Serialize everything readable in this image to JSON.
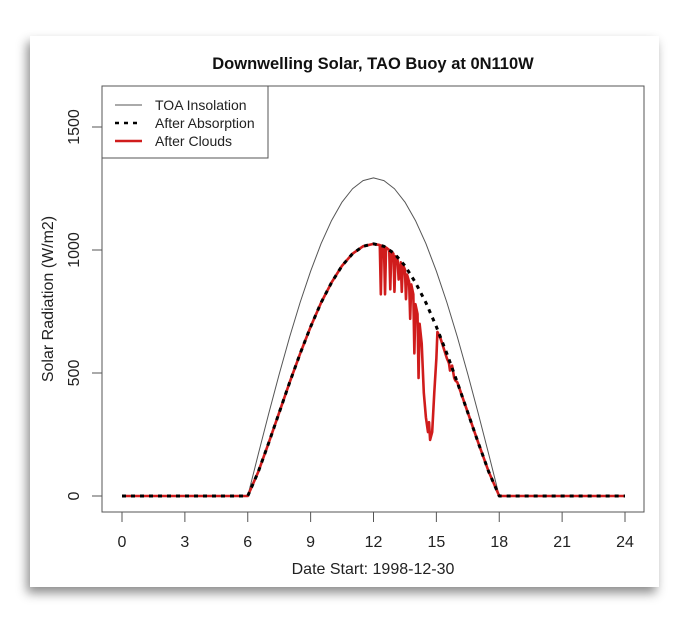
{
  "chart_data": {
    "type": "line",
    "title": "Downwelling Solar, TAO Buoy at 0N110W",
    "xlabel": "Date Start: 1998-12-30",
    "ylabel": "Solar Radiation (W/m2)",
    "xlim": [
      0,
      24
    ],
    "ylim": [
      0,
      1500
    ],
    "x_ticks": [
      0,
      3,
      6,
      9,
      12,
      15,
      18,
      21,
      24
    ],
    "x_tick_labels": [
      "0",
      "3",
      "6",
      "9",
      "12",
      "15",
      "18",
      "21",
      "24"
    ],
    "y_ticks": [
      0,
      500,
      1000,
      1500
    ],
    "y_tick_labels": [
      "0",
      "500",
      "1000",
      "1500"
    ],
    "grid": false,
    "legend_position": "top-left",
    "series": [
      {
        "name": "TOA Insolation",
        "style": "solid-thin",
        "color": "#555555",
        "x": [
          0,
          6,
          6.5,
          7,
          7.5,
          8,
          8.5,
          9,
          9.5,
          10,
          10.5,
          11,
          11.5,
          12,
          12.5,
          13,
          13.5,
          14,
          14.5,
          15,
          15.5,
          16,
          16.5,
          17,
          17.5,
          18,
          24
        ],
        "y": [
          0,
          0,
          169,
          335,
          495,
          647,
          787,
          914,
          1026,
          1120,
          1195,
          1249,
          1282,
          1293,
          1282,
          1249,
          1195,
          1120,
          1026,
          914,
          787,
          647,
          495,
          335,
          169,
          0,
          0
        ]
      },
      {
        "name": "After Absorption",
        "style": "dashed",
        "color": "#000000",
        "x": [
          0,
          6,
          6.5,
          7,
          7.5,
          8,
          8.5,
          9,
          9.5,
          10,
          10.5,
          11,
          11.5,
          12,
          12.5,
          13,
          13.5,
          14,
          14.5,
          15,
          15.5,
          16,
          16.5,
          17,
          17.5,
          18,
          24
        ],
        "y": [
          0,
          0,
          98,
          216,
          339,
          462,
          579,
          688,
          786,
          868,
          936,
          985,
          1015,
          1025,
          1015,
          985,
          936,
          868,
          786,
          688,
          579,
          462,
          339,
          216,
          98,
          0,
          0
        ]
      },
      {
        "name": "After Clouds",
        "style": "solid-thick",
        "color": "#d01c1c",
        "x": [
          0,
          6,
          6.5,
          7,
          7.5,
          8,
          8.5,
          9,
          9.5,
          10,
          10.5,
          11,
          11.5,
          12,
          12.3,
          12.35,
          12.4,
          12.5,
          12.55,
          12.6,
          12.75,
          12.8,
          12.85,
          12.95,
          13.0,
          13.05,
          13.15,
          13.2,
          13.3,
          13.35,
          13.4,
          13.5,
          13.55,
          13.6,
          13.7,
          13.75,
          13.8,
          13.9,
          13.95,
          14.0,
          14.1,
          14.15,
          14.2,
          14.3,
          14.4,
          14.5,
          14.6,
          14.65,
          14.7,
          14.8,
          14.9,
          15.0,
          15.05,
          15.2,
          15.35,
          15.5,
          15.6,
          15.65,
          15.75,
          15.85,
          15.9,
          16.0,
          16.5,
          17,
          17.5,
          18,
          24
        ],
        "y": [
          0,
          0,
          98,
          216,
          339,
          462,
          579,
          688,
          786,
          868,
          936,
          985,
          1015,
          1025,
          1020,
          820,
          1018,
          1014,
          820,
          1010,
          1000,
          840,
          995,
          985,
          830,
          975,
          960,
          880,
          950,
          830,
          940,
          920,
          800,
          900,
          870,
          720,
          860,
          820,
          580,
          780,
          740,
          480,
          700,
          620,
          420,
          320,
          260,
          300,
          228,
          260,
          420,
          560,
          667,
          640,
          600,
          560,
          540,
          510,
          530,
          480,
          470,
          462,
          339,
          216,
          98,
          0,
          0
        ]
      }
    ]
  }
}
